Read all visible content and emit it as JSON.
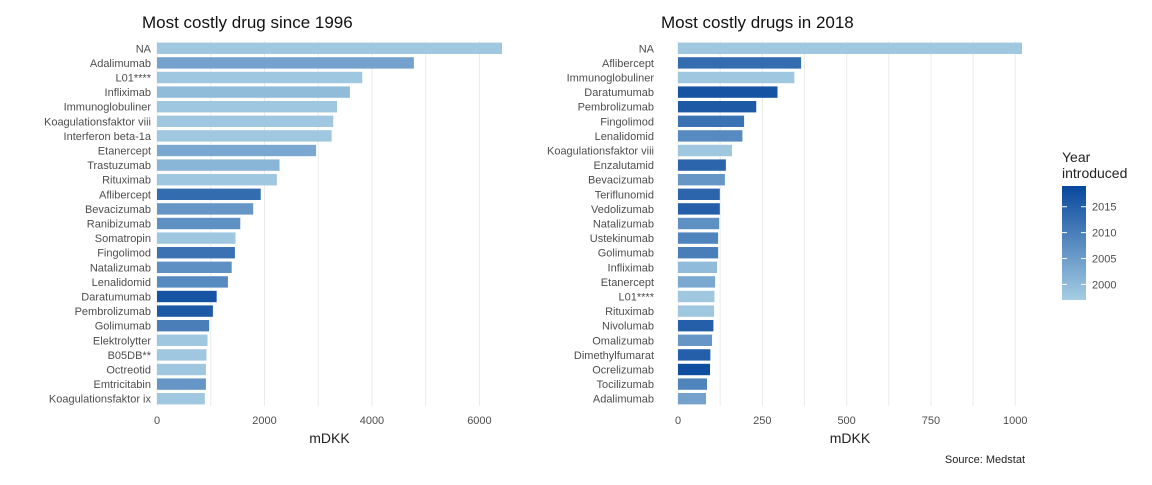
{
  "chart_data": [
    {
      "type": "bar",
      "orientation": "horizontal",
      "title": "Most costly drug since 1996",
      "xlabel": "mDKK",
      "ylabel": "",
      "xlim": [
        0,
        6500
      ],
      "xticks": [
        0,
        2000,
        4000,
        6000
      ],
      "grid": true,
      "categories": [
        "NA",
        "Adalimumab",
        "L01****",
        "Infliximab",
        "Immunoglobuliner",
        "Koagulationsfaktor viii",
        "Interferon beta-1a",
        "Etanercept",
        "Trastuzumab",
        "Rituximab",
        "Aflibercept",
        "Bevacizumab",
        "Ranibizumab",
        "Somatropin",
        "Fingolimod",
        "Natalizumab",
        "Lenalidomid",
        "Daratumumab",
        "Pembrolizumab",
        "Golimumab",
        "Elektrolytter",
        "B05DB**",
        "Octreotid",
        "Emtricitabin",
        "Koagulationsfaktor ix"
      ],
      "values": [
        6420,
        4780,
        3820,
        3590,
        3350,
        3280,
        3250,
        2960,
        2280,
        2230,
        1930,
        1790,
        1550,
        1460,
        1450,
        1390,
        1320,
        1110,
        1040,
        970,
        940,
        920,
        910,
        910,
        890
      ],
      "year_introduced": [
        1998,
        2004,
        1998,
        2000,
        1998,
        1998,
        1998,
        2003,
        2001,
        1998,
        2013,
        2006,
        2007,
        1998,
        2012,
        2007,
        2008,
        2017,
        2016,
        2010,
        1998,
        1998,
        1998,
        2006,
        1998
      ]
    },
    {
      "type": "bar",
      "orientation": "horizontal",
      "title": "Most costly drugs in 2018",
      "xlabel": "mDKK",
      "ylabel": "",
      "xlim": [
        0,
        1050
      ],
      "xticks": [
        0,
        250,
        500,
        750,
        1000
      ],
      "grid": true,
      "categories": [
        "NA",
        "Aflibercept",
        "Immunoglobuliner",
        "Daratumumab",
        "Pembrolizumab",
        "Fingolimod",
        "Lenalidomid",
        "Koagulationsfaktor viii",
        "Enzalutamid",
        "Bevacizumab",
        "Teriflunomid",
        "Vedolizumab",
        "Natalizumab",
        "Ustekinumab",
        "Golimumab",
        "Infliximab",
        "Etanercept",
        "L01****",
        "Rituximab",
        "Nivolumab",
        "Omalizumab",
        "Dimethylfumarat",
        "Ocrelizumab",
        "Tocilizumab",
        "Adalimumab"
      ],
      "values": [
        1020,
        365,
        345,
        295,
        232,
        196,
        191,
        160,
        142,
        139,
        124,
        124,
        122,
        119,
        119,
        116,
        110,
        108,
        107,
        105,
        101,
        96,
        95,
        86,
        83
      ],
      "year_introduced": [
        1998,
        2013,
        1998,
        2017,
        2016,
        2012,
        2008,
        1998,
        2014,
        2006,
        2014,
        2015,
        2007,
        2009,
        2010,
        2000,
        2003,
        1998,
        1998,
        2015,
        2006,
        2015,
        2018,
        2009,
        2004
      ]
    }
  ],
  "legend": {
    "title_line1": "Year",
    "title_line2": "introduced",
    "ticks": [
      2000,
      2005,
      2010,
      2015
    ],
    "range": [
      1997,
      2019
    ],
    "color_low": "#a6cde3",
    "color_high": "#08479c",
    "placement": "right"
  },
  "caption": "Source: Medstat"
}
